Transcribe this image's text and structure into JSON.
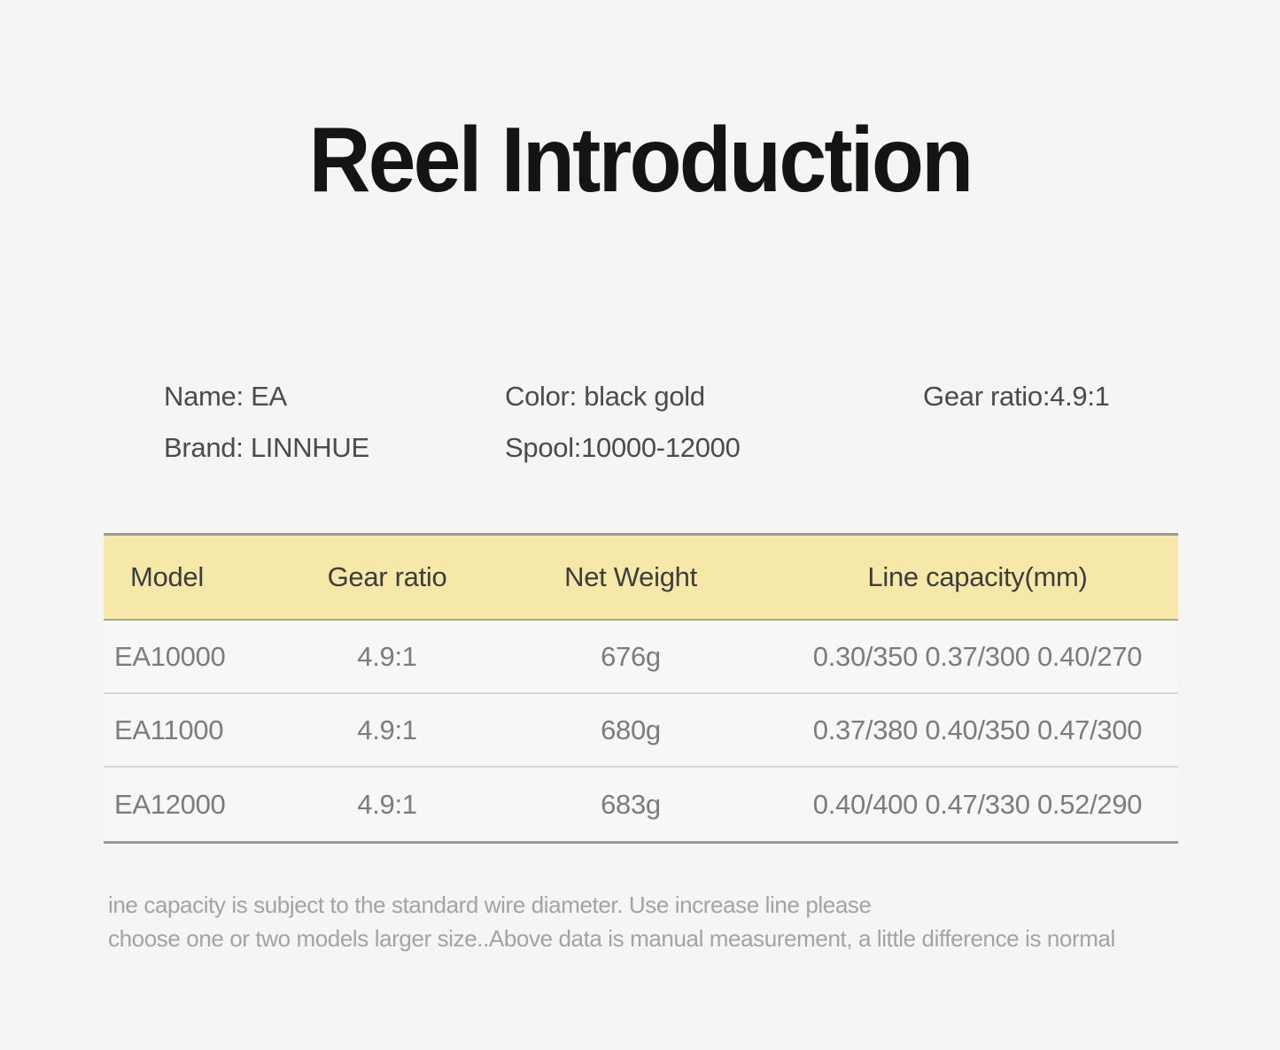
{
  "page": {
    "title": "Reel Introduction",
    "background_color": "#f5f5f4"
  },
  "info": {
    "name": "Name: EA",
    "brand": "Brand: LINNHUE",
    "color": "Color: black gold",
    "spool": "Spool:10000-12000",
    "gear_ratio": "Gear ratio:4.9:1"
  },
  "table": {
    "header_bg_color": "#f6e8a9",
    "border_color": "#989898",
    "columns": [
      "Model",
      "Gear ratio",
      "Net Weight",
      "Line capacity(mm)"
    ],
    "rows": [
      {
        "model": "EA10000",
        "gear_ratio": "4.9:1",
        "net_weight": "676g",
        "line_capacity": "0.30/350 0.37/300 0.40/270"
      },
      {
        "model": "EA11000",
        "gear_ratio": "4.9:1",
        "net_weight": "680g",
        "line_capacity": "0.37/380 0.40/350 0.47/300"
      },
      {
        "model": "EA12000",
        "gear_ratio": "4.9:1",
        "net_weight": "683g",
        "line_capacity": "0.40/400 0.47/330 0.52/290"
      }
    ]
  },
  "footer": {
    "line1": "ine capacity is subject to the standard wire diameter. Use increase line please",
    "line2": "choose one or two models larger size..Above data is manual measurement, a little difference is normal"
  }
}
